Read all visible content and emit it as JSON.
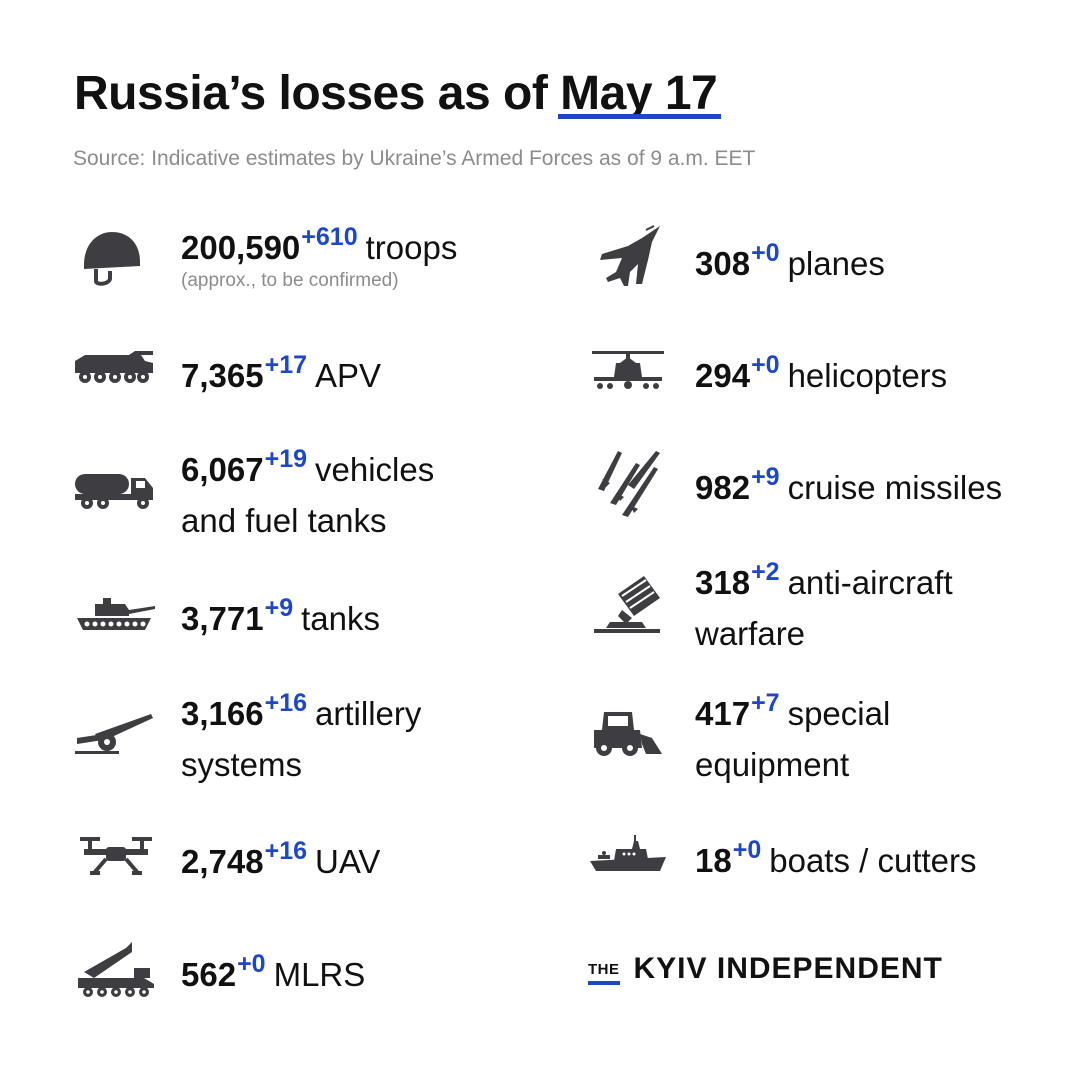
{
  "title": {
    "prefix": "Russia’s losses as of ",
    "date": "May 17"
  },
  "source": "Source: Indicative estimates by Ukraine’s Armed Forces as of 9 a.m. EET",
  "left": [
    {
      "icon": "helmet-icon",
      "value": "200,590",
      "delta": "+610",
      "label": "troops",
      "note": "(approx., to be confirmed)"
    },
    {
      "icon": "apv-icon",
      "value": "7,365",
      "delta": "+17",
      "label": "APV"
    },
    {
      "icon": "fuel-truck-icon",
      "value": "6,067",
      "delta": "+19",
      "label": "vehicles",
      "label2": "and fuel tanks"
    },
    {
      "icon": "tank-icon",
      "value": "3,771",
      "delta": "+9",
      "label": "tanks"
    },
    {
      "icon": "artillery-icon",
      "value": "3,166",
      "delta": "+16",
      "label": "artillery",
      "label2": "systems"
    },
    {
      "icon": "drone-icon",
      "value": "2,748",
      "delta": "+16",
      "label": "UAV"
    },
    {
      "icon": "mlrs-icon",
      "value": "562",
      "delta": "+0",
      "label": "MLRS"
    }
  ],
  "right": [
    {
      "icon": "jet-icon",
      "value": "308",
      "delta": "+0",
      "label": "planes"
    },
    {
      "icon": "helicopter-icon",
      "value": "294",
      "delta": "+0",
      "label": "helicopters"
    },
    {
      "icon": "missiles-icon",
      "value": "982",
      "delta": "+9",
      "label": "cruise missiles"
    },
    {
      "icon": "anti-aircraft-icon",
      "value": "318",
      "delta": "+2",
      "label": "anti-aircraft",
      "label2": "warfare"
    },
    {
      "icon": "bulldozer-icon",
      "value": "417",
      "delta": "+7",
      "label": "special",
      "label2": "equipment"
    },
    {
      "icon": "boat-icon",
      "value": "18",
      "delta": "+0",
      "label": "boats / cutters"
    }
  ],
  "logo": {
    "the": "THE",
    "name": "KYIV INDEPENDENT"
  },
  "colors": {
    "accent": "#1d47c9",
    "text": "#111111",
    "muted": "#8c8c8c",
    "icon": "#3d3d42"
  }
}
